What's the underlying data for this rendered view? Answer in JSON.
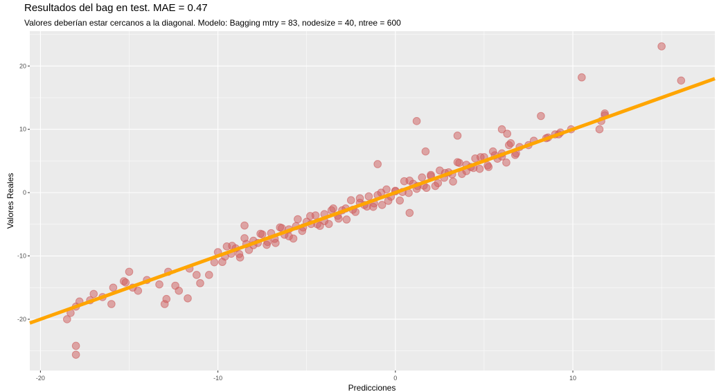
{
  "chart_data": {
    "type": "scatter",
    "title": "Resultados del bag en test. MAE = 0.47",
    "subtitle": "Valores deberían estar cercanos a la diagonal. Modelo: Bagging mtry = 83, nodesize = 40, ntree = 600",
    "xlabel": "Predicciones",
    "ylabel": "Valores Reales",
    "xlim": [
      -20.6,
      18.0
    ],
    "ylim": [
      -28.1,
      25.5
    ],
    "x_ticks": [
      -20,
      -10,
      0,
      10
    ],
    "y_ticks": [
      -20,
      -10,
      0,
      10,
      20
    ],
    "x_tick_labels": [
      "-20",
      "-10",
      "0",
      "10"
    ],
    "y_tick_labels": [
      "-20",
      "-10",
      "0",
      "10",
      "20"
    ],
    "grid": true,
    "reference_line": {
      "slope": 1,
      "intercept": 0,
      "color": "#FFA500"
    },
    "point_color": "#CD5C5C",
    "points": [
      [
        -18.5,
        -20
      ],
      [
        -18.3,
        -19
      ],
      [
        -18,
        -24.2
      ],
      [
        -18,
        -25.6
      ],
      [
        -18,
        -18
      ],
      [
        -17.8,
        -17.2
      ],
      [
        -17.2,
        -17
      ],
      [
        -17,
        -16
      ],
      [
        -16.5,
        -16.5
      ],
      [
        -16,
        -17.6
      ],
      [
        -15.9,
        -15
      ],
      [
        -15.3,
        -14
      ],
      [
        -15.2,
        -14.2
      ],
      [
        -15,
        -12.5
      ],
      [
        -14.8,
        -15
      ],
      [
        -14.5,
        -15.5
      ],
      [
        -14,
        -13.8
      ],
      [
        -13.3,
        -14.5
      ],
      [
        -13,
        -17.6
      ],
      [
        -12.9,
        -16.8
      ],
      [
        -12.8,
        -12.5
      ],
      [
        -12.4,
        -14.7
      ],
      [
        -12.2,
        -15.5
      ],
      [
        -11.7,
        -16.7
      ],
      [
        -11.6,
        -12
      ],
      [
        -11.2,
        -13
      ],
      [
        -11,
        -14.3
      ],
      [
        -10.5,
        -13
      ],
      [
        -10.2,
        -11
      ],
      [
        -8.5,
        -5.2
      ],
      [
        -1.0,
        4.5
      ],
      [
        0.8,
        -3.2
      ],
      [
        1.2,
        11.3
      ],
      [
        1.7,
        6.5
      ],
      [
        3.5,
        9
      ],
      [
        6,
        10
      ],
      [
        6.3,
        9.3
      ],
      [
        8.2,
        12.1
      ],
      [
        8.6,
        8.7
      ],
      [
        9.2,
        9.2
      ],
      [
        9.9,
        10
      ],
      [
        10.5,
        18.2
      ],
      [
        11.5,
        10
      ],
      [
        11.6,
        11.3
      ],
      [
        11.8,
        12.5
      ],
      [
        11.8,
        12.2
      ],
      [
        15,
        23.1
      ],
      [
        16.1,
        17.7
      ],
      [
        -10,
        -9.4
      ],
      [
        -9.75,
        -10.95
      ],
      [
        -9.5,
        -8.5
      ],
      [
        -9.25,
        -9.65
      ],
      [
        -9,
        -8.8
      ],
      [
        -8.75,
        -10.25
      ],
      [
        -8.5,
        -7.2
      ],
      [
        -8.25,
        -9.05
      ],
      [
        -8,
        -7.6
      ],
      [
        -7.75,
        -7.95
      ],
      [
        -7.5,
        -6.6
      ],
      [
        -7.25,
        -8.25
      ],
      [
        -7,
        -6.4
      ],
      [
        -6.75,
        -7.95
      ],
      [
        -6.5,
        -5.5
      ],
      [
        -6.25,
        -6.65
      ],
      [
        -6,
        -5.8
      ],
      [
        -5.75,
        -7.25
      ],
      [
        -5.5,
        -4.2
      ],
      [
        -5.25,
        -6.05
      ],
      [
        -5,
        -4.6
      ],
      [
        -4.75,
        -4.95
      ],
      [
        -4.5,
        -3.6
      ],
      [
        -4.25,
        -5.25
      ],
      [
        -4,
        -3.4
      ],
      [
        -3.75,
        -4.95
      ],
      [
        -3.5,
        -2.5
      ],
      [
        -3.25,
        -3.65
      ],
      [
        -3,
        -2.8
      ],
      [
        -2.75,
        -4.25
      ],
      [
        -2.5,
        -1.2
      ],
      [
        -2.25,
        -3.05
      ],
      [
        -2,
        -1.6
      ],
      [
        -1.75,
        -1.95
      ],
      [
        -1.5,
        -0.6
      ],
      [
        -1.25,
        -2.25
      ],
      [
        -1,
        -0.4
      ],
      [
        -0.75,
        -1.95
      ],
      [
        -0.5,
        0.5
      ],
      [
        -0.25,
        -0.65
      ],
      [
        0,
        0.2
      ],
      [
        0.25,
        -1.25
      ],
      [
        0.5,
        1.8
      ],
      [
        0.75,
        -0.05
      ],
      [
        1,
        1.4
      ],
      [
        1.25,
        1.05
      ],
      [
        1.5,
        2.4
      ],
      [
        1.75,
        0.75
      ],
      [
        2,
        2.6
      ],
      [
        2.25,
        1.05
      ],
      [
        2.5,
        3.5
      ],
      [
        2.75,
        2.35
      ],
      [
        3,
        3.2
      ],
      [
        3.25,
        1.75
      ],
      [
        3.5,
        4.8
      ],
      [
        3.75,
        2.95
      ],
      [
        4,
        4.4
      ],
      [
        4.25,
        4.05
      ],
      [
        4.5,
        5.4
      ],
      [
        4.75,
        3.75
      ],
      [
        5,
        5.6
      ],
      [
        5.25,
        4.05
      ],
      [
        5.5,
        6.5
      ],
      [
        5.75,
        5.35
      ],
      [
        6,
        6.2
      ],
      [
        6.25,
        4.75
      ],
      [
        6.5,
        7.8
      ],
      [
        6.75,
        5.95
      ],
      [
        -9.6,
        -10.1
      ],
      [
        -9.2,
        -8.4
      ],
      [
        -8.8,
        -9.7
      ],
      [
        -8.4,
        -8.1
      ],
      [
        -8,
        -8.3
      ],
      [
        -7.6,
        -6.5
      ],
      [
        -7.2,
        -7.8
      ],
      [
        -6.8,
        -7.3
      ],
      [
        -6.4,
        -5.6
      ],
      [
        -6,
        -6.9
      ],
      [
        -5.6,
        -5.3
      ],
      [
        -5.2,
        -5.5
      ],
      [
        -4.8,
        -3.7
      ],
      [
        -4.4,
        -5.0
      ],
      [
        -4,
        -4.5
      ],
      [
        -3.6,
        -2.8
      ],
      [
        -3.2,
        -4.1
      ],
      [
        -2.8,
        -2.5
      ],
      [
        -2.4,
        -2.7
      ],
      [
        -2,
        -0.9
      ],
      [
        -1.6,
        -2.2
      ],
      [
        -1.2,
        -1.7
      ],
      [
        -0.8,
        0
      ],
      [
        -0.4,
        -1.3
      ],
      [
        0,
        0.3
      ],
      [
        0.4,
        0.1
      ],
      [
        0.8,
        1.9
      ],
      [
        1.2,
        0.6
      ],
      [
        1.6,
        1.1
      ],
      [
        2,
        2.8
      ],
      [
        2.4,
        1.5
      ],
      [
        2.8,
        3.1
      ],
      [
        3.2,
        2.9
      ],
      [
        3.6,
        4.7
      ],
      [
        4,
        3.4
      ],
      [
        4.4,
        3.9
      ],
      [
        4.8,
        5.6
      ],
      [
        5.2,
        4.3
      ],
      [
        5.6,
        5.9
      ],
      [
        6,
        5.7
      ],
      [
        6.4,
        7.5
      ],
      [
        6.8,
        6.2
      ],
      [
        7,
        7.2
      ],
      [
        7.5,
        7.5
      ],
      [
        7.8,
        8.2
      ],
      [
        8.5,
        8.6
      ],
      [
        9,
        9.2
      ],
      [
        9.3,
        9.5
      ]
    ]
  }
}
